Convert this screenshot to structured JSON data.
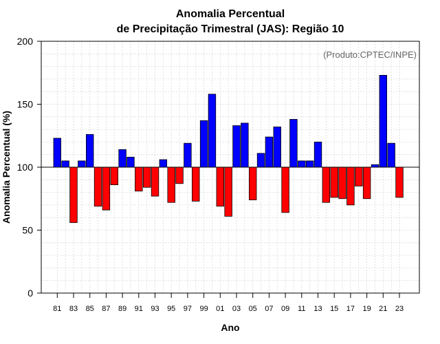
{
  "chart_data": {
    "type": "bar",
    "title": "Anomalia Percentual",
    "subtitle": "de Precipitação Trimestral (JAS): Região 10",
    "xlabel": "Ano",
    "ylabel": "Anomalia Percentual (%)",
    "credit": "(Produto:CPTEC/INPE)",
    "ylim": [
      0,
      200
    ],
    "yticks": [
      0,
      50,
      100,
      150,
      200
    ],
    "baseline": 100,
    "grid": true,
    "colors": {
      "above": "#0000ff",
      "below": "#ff0000",
      "edge": "#000000"
    },
    "categories": [
      "81",
      "82",
      "83",
      "84",
      "85",
      "86",
      "87",
      "88",
      "89",
      "90",
      "91",
      "92",
      "93",
      "94",
      "95",
      "96",
      "97",
      "98",
      "99",
      "00",
      "01",
      "02",
      "03",
      "04",
      "05",
      "06",
      "07",
      "08",
      "09",
      "10",
      "11",
      "12",
      "13",
      "14",
      "15",
      "16",
      "17",
      "18",
      "19",
      "20",
      "21",
      "22",
      "23"
    ],
    "xtick_labels": [
      "81",
      "83",
      "85",
      "87",
      "89",
      "91",
      "93",
      "95",
      "97",
      "99",
      "01",
      "03",
      "05",
      "07",
      "09",
      "11",
      "13",
      "15",
      "17",
      "19",
      "21",
      "23"
    ],
    "values": [
      123,
      105,
      56,
      105,
      126,
      69,
      66,
      86,
      114,
      108,
      81,
      84,
      77,
      106,
      72,
      87,
      119,
      73,
      137,
      158,
      69,
      61,
      133,
      135,
      74,
      111,
      124,
      132,
      64,
      138,
      105,
      105,
      120,
      72,
      76,
      75,
      70,
      85,
      75,
      102,
      173,
      119,
      76
    ]
  }
}
